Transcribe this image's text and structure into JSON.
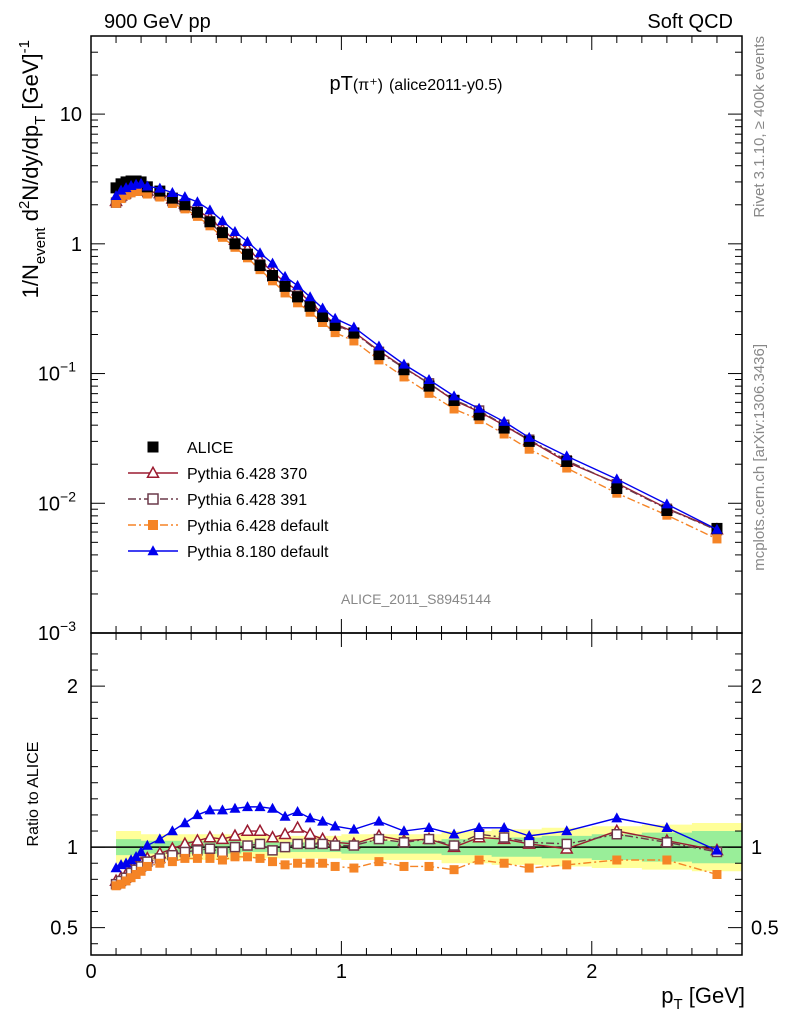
{
  "header": {
    "left": "900 GeV pp",
    "right": "Soft QCD"
  },
  "chart_data": {
    "type": "scatter",
    "title": "pT(π⁺) (alice2011-y0.5)",
    "title_main": "pT",
    "title_particle": "(π⁺)",
    "title_tag": "(alice2011-y0.5)",
    "analysis_id": "ALICE_2011_S8945144",
    "side_label_top": "Rivet 3.1.10, ≥ 400k events",
    "side_label_bottom": "mcplots.cern.ch [arXiv:1306.3436]",
    "xlabel": "p",
    "xlabel_sub": "T",
    "xlabel_unit": " [GeV]",
    "ylabel_parts": {
      "a": "1/N",
      "a_sub": "event",
      "b": " d",
      "b_sup": "2",
      "c": "N/dy/dp",
      "c_sub": "T",
      "d": " [GeV]",
      "d_sup": "-1"
    },
    "ratio_ylabel": "Ratio to ALICE",
    "xlim": [
      0,
      2.6
    ],
    "ylim": [
      0.001,
      40
    ],
    "ratio_ylim": [
      0.33,
      2.33
    ],
    "x_ticks": [
      {
        "v": 0,
        "label": "0"
      },
      {
        "v": 1,
        "label": "1"
      },
      {
        "v": 2,
        "label": "2"
      }
    ],
    "y_ticks": [
      {
        "v": 10,
        "m": "10",
        "e": ""
      },
      {
        "v": 1,
        "m": "1",
        "e": ""
      },
      {
        "v": 0.1,
        "m": "10",
        "e": "−1"
      },
      {
        "v": 0.01,
        "m": "10",
        "e": "−2"
      },
      {
        "v": 0.001,
        "m": "10",
        "e": "−3"
      }
    ],
    "ratio_ticks": [
      {
        "v": 0.5,
        "label": "0.5"
      },
      {
        "v": 1,
        "label": "1"
      },
      {
        "v": 2,
        "label": "2"
      }
    ],
    "x": [
      0.1,
      0.12,
      0.14,
      0.16,
      0.18,
      0.2,
      0.225,
      0.275,
      0.325,
      0.375,
      0.425,
      0.475,
      0.525,
      0.575,
      0.625,
      0.675,
      0.725,
      0.775,
      0.825,
      0.875,
      0.925,
      0.975,
      1.05,
      1.15,
      1.25,
      1.35,
      1.45,
      1.55,
      1.65,
      1.75,
      1.9,
      2.1,
      2.3,
      2.5
    ],
    "data_values": [
      2.7,
      2.9,
      3.0,
      3.05,
      3.05,
      3.0,
      2.75,
      2.55,
      2.25,
      2.0,
      1.75,
      1.48,
      1.22,
      1.0,
      0.83,
      0.68,
      0.57,
      0.47,
      0.39,
      0.33,
      0.275,
      0.235,
      0.205,
      0.14,
      0.107,
      0.08,
      0.062,
      0.048,
      0.038,
      0.03,
      0.021,
      0.013,
      0.0088,
      0.0064
    ],
    "bands": {
      "x": [
        0.1,
        0.2,
        0.2,
        0.4,
        0.4,
        0.6,
        0.6,
        0.8,
        0.8,
        1.0,
        1.0,
        1.2,
        1.2,
        1.4,
        1.4,
        1.6,
        1.6,
        1.8,
        1.8,
        2.0,
        2.0,
        2.2,
        2.2,
        2.4,
        2.4,
        2.6
      ],
      "stat_lo": [
        0.95,
        0.95,
        0.96,
        0.96,
        0.96,
        0.96,
        0.97,
        0.97,
        0.97,
        0.97,
        0.96,
        0.96,
        0.96,
        0.96,
        0.95,
        0.95,
        0.94,
        0.94,
        0.93,
        0.93,
        0.92,
        0.92,
        0.91,
        0.91,
        0.9,
        0.9
      ],
      "stat_hi": [
        1.05,
        1.05,
        1.04,
        1.04,
        1.04,
        1.04,
        1.03,
        1.03,
        1.03,
        1.03,
        1.04,
        1.04,
        1.04,
        1.04,
        1.05,
        1.05,
        1.06,
        1.06,
        1.07,
        1.07,
        1.08,
        1.08,
        1.09,
        1.09,
        1.1,
        1.1
      ],
      "syst_lo": [
        0.9,
        0.9,
        0.92,
        0.92,
        0.92,
        0.92,
        0.93,
        0.93,
        0.93,
        0.93,
        0.92,
        0.92,
        0.92,
        0.92,
        0.9,
        0.9,
        0.89,
        0.89,
        0.88,
        0.88,
        0.87,
        0.87,
        0.86,
        0.86,
        0.85,
        0.85
      ],
      "syst_hi": [
        1.1,
        1.1,
        1.08,
        1.08,
        1.08,
        1.08,
        1.07,
        1.07,
        1.07,
        1.07,
        1.08,
        1.08,
        1.08,
        1.08,
        1.1,
        1.1,
        1.11,
        1.11,
        1.12,
        1.12,
        1.13,
        1.13,
        1.14,
        1.14,
        1.15,
        1.15
      ]
    },
    "series": [
      {
        "name": "ALICE",
        "color": "#000000",
        "marker": "filled-square",
        "line": "none",
        "ratio": [
          1,
          1,
          1,
          1,
          1,
          1,
          1,
          1,
          1,
          1,
          1,
          1,
          1,
          1,
          1,
          1,
          1,
          1,
          1,
          1,
          1,
          1,
          1,
          1,
          1,
          1,
          1,
          1,
          1,
          1,
          1,
          1,
          1,
          1
        ]
      },
      {
        "name": "Pythia 6.428 370",
        "color": "#9b1b30",
        "marker": "open-triangle",
        "line": "solid",
        "ratio": [
          0.79,
          0.81,
          0.83,
          0.86,
          0.88,
          0.9,
          0.93,
          0.96,
          0.99,
          1.02,
          1.04,
          1.06,
          1.05,
          1.07,
          1.1,
          1.1,
          1.06,
          1.08,
          1.12,
          1.08,
          1.05,
          1.03,
          1.02,
          1.07,
          1.04,
          1.05,
          1.0,
          1.06,
          1.05,
          1.02,
          0.99,
          1.1,
          1.04,
          0.98
        ]
      },
      {
        "name": "Pythia 6.428 391",
        "color": "#6b3a4a",
        "marker": "open-square",
        "line": "dashdot",
        "ratio": [
          0.77,
          0.79,
          0.81,
          0.84,
          0.86,
          0.88,
          0.91,
          0.93,
          0.95,
          0.97,
          0.98,
          0.99,
          0.97,
          1.0,
          1.01,
          1.02,
          0.98,
          1.0,
          1.02,
          1.02,
          1.02,
          1.01,
          1.01,
          1.05,
          1.03,
          1.05,
          1.01,
          1.08,
          1.06,
          1.03,
          1.02,
          1.08,
          1.03,
          0.97
        ]
      },
      {
        "name": "Pythia 6.428 default",
        "color": "#f58426",
        "marker": "filled-square",
        "line": "dashdot",
        "ratio": [
          0.76,
          0.77,
          0.79,
          0.81,
          0.83,
          0.85,
          0.88,
          0.9,
          0.91,
          0.93,
          0.93,
          0.93,
          0.92,
          0.94,
          0.94,
          0.93,
          0.91,
          0.89,
          0.9,
          0.9,
          0.9,
          0.88,
          0.87,
          0.91,
          0.88,
          0.88,
          0.86,
          0.92,
          0.9,
          0.87,
          0.89,
          0.92,
          0.92,
          0.83
        ]
      },
      {
        "name": "Pythia 8.180 default",
        "color": "#0000ee",
        "marker": "filled-triangle",
        "line": "solid",
        "ratio": [
          0.87,
          0.89,
          0.9,
          0.92,
          0.94,
          0.97,
          1.01,
          1.05,
          1.1,
          1.15,
          1.2,
          1.23,
          1.23,
          1.24,
          1.25,
          1.25,
          1.24,
          1.19,
          1.22,
          1.18,
          1.16,
          1.13,
          1.11,
          1.16,
          1.1,
          1.12,
          1.08,
          1.12,
          1.12,
          1.07,
          1.1,
          1.18,
          1.12,
          0.98
        ]
      }
    ]
  }
}
